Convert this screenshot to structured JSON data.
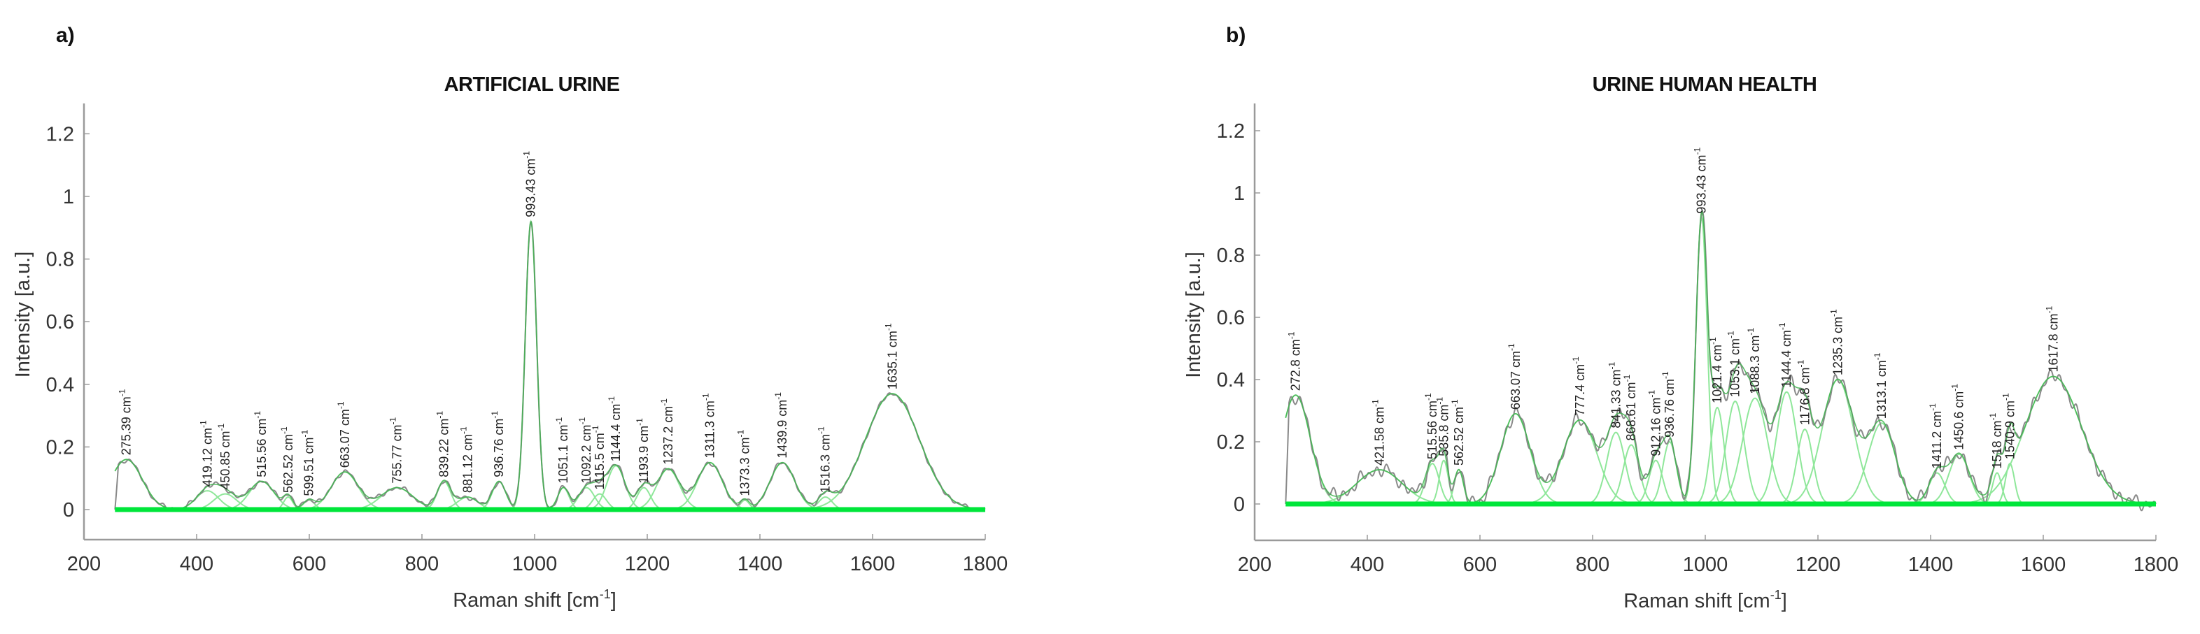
{
  "figure": {
    "panels": [
      {
        "letter": "a)",
        "title": "ARTIFICIAL URINE"
      },
      {
        "letter": "b)",
        "title": "URINE HUMAN HEALTH"
      }
    ]
  },
  "colors": {
    "measured": "#8a8a8a",
    "fit_sum": "#3fb34f",
    "components": "#8fe79a",
    "baseline": "#00e63a",
    "axis": "#9a9a9a",
    "text": "#222222"
  },
  "chart_data": [
    {
      "type": "line",
      "title": "ARTIFICIAL URINE",
      "panel": "a)",
      "xlabel": "Raman shift [cm⁻¹]",
      "ylabel": "Intensity [a.u.]",
      "xlim": [
        200,
        1800
      ],
      "ylim": [
        -0.1,
        1.3
      ],
      "xticks": [
        200,
        400,
        600,
        800,
        1000,
        1200,
        1400,
        1600,
        1800
      ],
      "yticks": [
        0,
        0.2,
        0.4,
        0.6,
        0.8,
        1,
        1.2
      ],
      "ytick_labels": [
        "0",
        "0.2",
        "0.4",
        "0.6",
        "0.8",
        "1",
        "1.2"
      ],
      "grid": false,
      "data_range": [
        255,
        1800
      ],
      "series": [
        {
          "name": "measured spectrum",
          "color": "gray"
        },
        {
          "name": "fitted Gaussian components",
          "color": "light green"
        },
        {
          "name": "baseline",
          "color": "bright green",
          "value": 0
        }
      ],
      "peaks": [
        {
          "x": 275.39,
          "label": "275.39 cm-1",
          "height": 0.16,
          "width": 28
        },
        {
          "x": 419.12,
          "label": "419.12 cm-1",
          "height": 0.06,
          "width": 20
        },
        {
          "x": 450.85,
          "label": "450.85 cm-1",
          "height": 0.05,
          "width": 20
        },
        {
          "x": 515.56,
          "label": "515.56 cm-1",
          "height": 0.09,
          "width": 22
        },
        {
          "x": 562.52,
          "label": "562.52 cm-1",
          "height": 0.04,
          "width": 8
        },
        {
          "x": 599.51,
          "label": "599.51 cm-1",
          "height": 0.03,
          "width": 10
        },
        {
          "x": 663.07,
          "label": "663.07 cm-1",
          "height": 0.12,
          "width": 24
        },
        {
          "x": 755.77,
          "label": "755.77 cm-1",
          "height": 0.07,
          "width": 28
        },
        {
          "x": 839.22,
          "label": "839.22 cm-1",
          "height": 0.09,
          "width": 12
        },
        {
          "x": 881.12,
          "label": "881.12 cm-1",
          "height": 0.04,
          "width": 18
        },
        {
          "x": 936.76,
          "label": "936.76 cm-1",
          "height": 0.09,
          "width": 12
        },
        {
          "x": 993.43,
          "label": "993.43 cm-1",
          "height": 0.92,
          "width": 10
        },
        {
          "x": 1051.1,
          "label": "1051.1 cm-1",
          "height": 0.07,
          "width": 10
        },
        {
          "x": 1092.2,
          "label": "1092.2 cm-1",
          "height": 0.07,
          "width": 14
        },
        {
          "x": 1115.5,
          "label": "1115.5 cm-1",
          "height": 0.05,
          "width": 12
        },
        {
          "x": 1144.4,
          "label": "1144.4 cm-1",
          "height": 0.14,
          "width": 16
        },
        {
          "x": 1193.9,
          "label": "1193.9 cm-1",
          "height": 0.07,
          "width": 12
        },
        {
          "x": 1237.2,
          "label": "1237.2 cm-1",
          "height": 0.13,
          "width": 20
        },
        {
          "x": 1311.3,
          "label": "1311.3 cm-1",
          "height": 0.15,
          "width": 22
        },
        {
          "x": 1373.3,
          "label": "1373.3 cm-1",
          "height": 0.03,
          "width": 8
        },
        {
          "x": 1439.9,
          "label": "1439.9 cm-1",
          "height": 0.15,
          "width": 22
        },
        {
          "x": 1516.3,
          "label": "1516.3 cm-1",
          "height": 0.04,
          "width": 12
        },
        {
          "x": 1635.1,
          "label": "1635.1 cm-1",
          "height": 0.37,
          "width": 48
        }
      ]
    },
    {
      "type": "line",
      "title": "URINE HUMAN HEALTH",
      "panel": "b)",
      "xlabel": "Raman shift [cm⁻¹]",
      "ylabel": "Intensity [a.u.]",
      "xlim": [
        200,
        1800
      ],
      "ylim": [
        -0.1,
        1.3
      ],
      "xticks": [
        200,
        400,
        600,
        800,
        1000,
        1200,
        1400,
        1600,
        1800
      ],
      "yticks": [
        0,
        0.2,
        0.4,
        0.6,
        0.8,
        1,
        1.2
      ],
      "ytick_labels": [
        "0",
        "0.2",
        "0.4",
        "0.6",
        "0.8",
        "1",
        "1.2"
      ],
      "grid": false,
      "data_range": [
        255,
        1800
      ],
      "series": [
        {
          "name": "measured spectrum",
          "color": "gray"
        },
        {
          "name": "fitted Gaussian components",
          "color": "light green"
        },
        {
          "name": "baseline",
          "color": "bright green",
          "value": 0
        }
      ],
      "peaks": [
        {
          "x": 272.8,
          "label": "272.8 cm-1",
          "height": 0.35,
          "width": 26
        },
        {
          "x": 421.58,
          "label": "421.58 cm-1",
          "height": 0.11,
          "width": 40
        },
        {
          "x": 515.56,
          "label": "515.56 cm-1",
          "height": 0.13,
          "width": 12
        },
        {
          "x": 535.8,
          "label": "535.8 cm-1",
          "height": 0.14,
          "width": 8
        },
        {
          "x": 562.52,
          "label": "562.52 cm-1",
          "height": 0.11,
          "width": 8
        },
        {
          "x": 663.07,
          "label": "663.07 cm-1",
          "height": 0.29,
          "width": 26
        },
        {
          "x": 777.4,
          "label": "777.4 cm-1",
          "height": 0.27,
          "width": 30
        },
        {
          "x": 841.33,
          "label": "841.33 cm-1",
          "height": 0.23,
          "width": 16
        },
        {
          "x": 868.61,
          "label": "868.61 cm-1",
          "height": 0.19,
          "width": 14
        },
        {
          "x": 912.16,
          "label": "912.16 cm-1",
          "height": 0.14,
          "width": 12
        },
        {
          "x": 936.76,
          "label": "936.76 cm-1",
          "height": 0.2,
          "width": 12
        },
        {
          "x": 993.43,
          "label": "993.43 cm-1",
          "height": 0.92,
          "width": 10
        },
        {
          "x": 1021.4,
          "label": "1021.4 cm-1",
          "height": 0.31,
          "width": 12
        },
        {
          "x": 1053.1,
          "label": "1053.1 cm-1",
          "height": 0.33,
          "width": 16
        },
        {
          "x": 1088.3,
          "label": "1088.3 cm-1",
          "height": 0.34,
          "width": 22
        },
        {
          "x": 1144.4,
          "label": "1144.4 cm-1",
          "height": 0.36,
          "width": 18
        },
        {
          "x": 1176.8,
          "label": "1176.8 cm-1",
          "height": 0.24,
          "width": 14
        },
        {
          "x": 1235.3,
          "label": "1235.3 cm-1",
          "height": 0.4,
          "width": 28
        },
        {
          "x": 1313.1,
          "label": "1313.1 cm-1",
          "height": 0.26,
          "width": 24
        },
        {
          "x": 1411.2,
          "label": "1411.2 cm-1",
          "height": 0.1,
          "width": 14
        },
        {
          "x": 1450.6,
          "label": "1450.6 cm-1",
          "height": 0.16,
          "width": 18
        },
        {
          "x": 1518,
          "label": "1518 cm-1",
          "height": 0.1,
          "width": 8
        },
        {
          "x": 1540.9,
          "label": "1540.9 cm-1",
          "height": 0.13,
          "width": 8
        },
        {
          "x": 1617.8,
          "label": "1617.8 cm-1",
          "height": 0.41,
          "width": 50
        }
      ]
    }
  ]
}
